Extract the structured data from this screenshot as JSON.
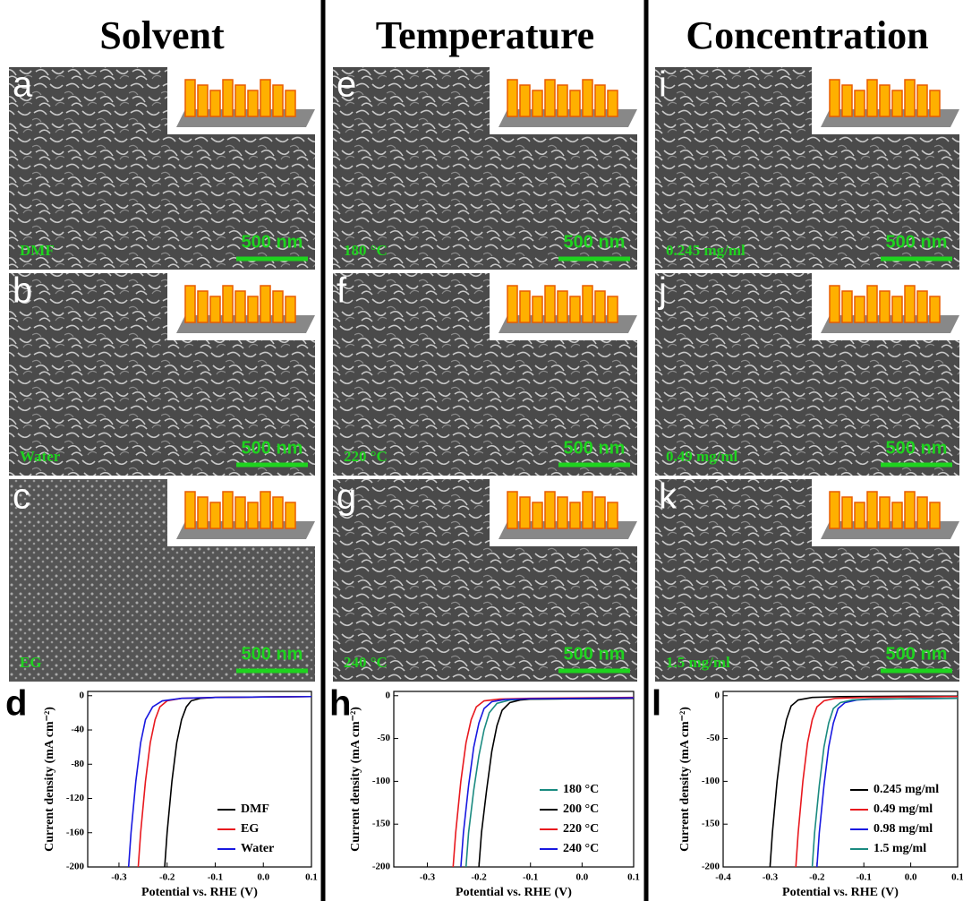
{
  "headers": [
    "Solvent",
    "Temperature",
    "Concentration"
  ],
  "panels": [
    {
      "letter": "a",
      "label": "DMF",
      "scale": "500 nm"
    },
    {
      "letter": "b",
      "label": "Water",
      "scale": "500 nm"
    },
    {
      "letter": "c",
      "label": "EG",
      "scale": "500 nm"
    },
    {
      "letter": "e",
      "label": "180 °C",
      "scale": "500 nm"
    },
    {
      "letter": "f",
      "label": "220 °C",
      "scale": "500 nm"
    },
    {
      "letter": "g",
      "label": "240 °C",
      "scale": "500 nm"
    },
    {
      "letter": "i",
      "label": "0.245 mg/ml",
      "scale": "500 nm"
    },
    {
      "letter": "j",
      "label": "0.49 mg/ml",
      "scale": "500 nm"
    },
    {
      "letter": "k",
      "label": "1.5 mg/ml",
      "scale": "500 nm"
    }
  ],
  "plot_letters": [
    "d",
    "h",
    "l"
  ],
  "chart_data": [
    {
      "type": "line",
      "x_label": "Potential vs. RHE (V)",
      "y_label": "Current density (mA cm⁻²)",
      "xlim": [
        -0.365,
        0.1
      ],
      "xticks": [
        -0.3,
        -0.2,
        -0.1,
        {
          "value": 0,
          "label": "0.0"
        },
        0.1
      ],
      "ylim": [
        -200,
        5
      ],
      "yticks": [
        0,
        -40,
        -80,
        -120,
        -160,
        -200
      ],
      "series": [
        {
          "name": "DMF",
          "color": "#000000",
          "x": [
            -0.205,
            -0.2,
            -0.19,
            -0.18,
            -0.17,
            -0.16,
            -0.15,
            -0.13,
            -0.1,
            0,
            0.1
          ],
          "values": [
            -200,
            -160,
            -100,
            -55,
            -28,
            -13,
            -6,
            -3,
            -2,
            -1.5,
            -1
          ]
        },
        {
          "name": "EG",
          "color": "#e8181e",
          "x": [
            -0.26,
            -0.255,
            -0.245,
            -0.235,
            -0.225,
            -0.215,
            -0.2,
            -0.17,
            -0.1,
            0,
            0.1
          ],
          "values": [
            -200,
            -160,
            -100,
            -55,
            -28,
            -13,
            -6,
            -3,
            -2,
            -1.5,
            -1
          ]
        },
        {
          "name": "Water",
          "color": "#1818e0",
          "x": [
            -0.28,
            -0.275,
            -0.265,
            -0.255,
            -0.245,
            -0.23,
            -0.21,
            -0.17,
            -0.1,
            0,
            0.1
          ],
          "values": [
            -200,
            -160,
            -100,
            -55,
            -28,
            -13,
            -6,
            -3,
            -2,
            -1.5,
            -1
          ]
        }
      ]
    },
    {
      "type": "line",
      "x_label": "Potential vs. RHE (V)",
      "y_label": "Current density (mA cm⁻²)",
      "xlim": [
        -0.365,
        0.1
      ],
      "xticks": [
        -0.3,
        -0.2,
        -0.1,
        {
          "value": 0,
          "label": "0.0"
        },
        0.1
      ],
      "ylim": [
        -200,
        5
      ],
      "yticks": [
        0,
        -50,
        -100,
        -150,
        -200
      ],
      "series": [
        {
          "name": "180 °C",
          "color": "#1a8a80",
          "x": [
            -0.225,
            -0.22,
            -0.21,
            -0.2,
            -0.19,
            -0.18,
            -0.165,
            -0.14,
            -0.1,
            0,
            0.1
          ],
          "values": [
            -200,
            -160,
            -110,
            -70,
            -40,
            -20,
            -9,
            -5,
            -4,
            -3.5,
            -3
          ]
        },
        {
          "name": "200 °C",
          "color": "#000000",
          "x": [
            -0.2,
            -0.195,
            -0.185,
            -0.175,
            -0.165,
            -0.155,
            -0.14,
            -0.12,
            -0.1,
            0,
            0.1
          ],
          "values": [
            -200,
            -160,
            -110,
            -65,
            -35,
            -17,
            -8,
            -5,
            -4,
            -3.5,
            -3
          ]
        },
        {
          "name": "220 °C",
          "color": "#e8181e",
          "x": [
            -0.25,
            -0.245,
            -0.235,
            -0.225,
            -0.215,
            -0.205,
            -0.19,
            -0.16,
            -0.1,
            0,
            0.1
          ],
          "values": [
            -200,
            -160,
            -100,
            -55,
            -28,
            -13,
            -6,
            -4,
            -3,
            -2.5,
            -2
          ]
        },
        {
          "name": "240 °C",
          "color": "#1818e0",
          "x": [
            -0.235,
            -0.23,
            -0.22,
            -0.21,
            -0.2,
            -0.19,
            -0.175,
            -0.15,
            -0.1,
            0,
            0.1
          ],
          "values": [
            -200,
            -160,
            -105,
            -60,
            -32,
            -15,
            -7,
            -4.5,
            -3.5,
            -3,
            -2.5
          ]
        }
      ]
    },
    {
      "type": "line",
      "x_label": "Potential vs. RHE (V)",
      "y_label": "Current density (mA cm⁻²)",
      "xlim": [
        -0.4,
        0.1
      ],
      "xticks": [
        -0.4,
        -0.3,
        -0.2,
        -0.1,
        {
          "value": 0,
          "label": "0.0"
        },
        0.1
      ],
      "ylim": [
        -200,
        5
      ],
      "yticks": [
        0,
        -50,
        -100,
        -150,
        -200
      ],
      "series": [
        {
          "name": "0.245 mg/ml",
          "color": "#000000",
          "x": [
            -0.3,
            -0.295,
            -0.285,
            -0.275,
            -0.265,
            -0.255,
            -0.24,
            -0.21,
            -0.15,
            0,
            0.1
          ],
          "values": [
            -200,
            -160,
            -100,
            -55,
            -28,
            -12,
            -5,
            -2,
            -1,
            -0.5,
            -0.5
          ]
        },
        {
          "name": "0.49 mg/ml",
          "color": "#e8181e",
          "x": [
            -0.245,
            -0.24,
            -0.23,
            -0.22,
            -0.21,
            -0.2,
            -0.185,
            -0.16,
            -0.1,
            0,
            0.1
          ],
          "values": [
            -200,
            -160,
            -100,
            -55,
            -28,
            -13,
            -6,
            -3,
            -2,
            -1.5,
            -1
          ]
        },
        {
          "name": "0.98 mg/ml",
          "color": "#1818e0",
          "x": [
            -0.2,
            -0.195,
            -0.185,
            -0.175,
            -0.165,
            -0.155,
            -0.14,
            -0.115,
            -0.08,
            0,
            0.1
          ],
          "values": [
            -200,
            -160,
            -105,
            -60,
            -32,
            -15,
            -8,
            -5,
            -4,
            -3.5,
            -3
          ]
        },
        {
          "name": "1.5 mg/ml",
          "color": "#1a8a80",
          "x": [
            -0.21,
            -0.205,
            -0.195,
            -0.185,
            -0.175,
            -0.165,
            -0.15,
            -0.125,
            -0.09,
            0,
            0.1
          ],
          "values": [
            -200,
            -160,
            -105,
            -60,
            -32,
            -15,
            -8,
            -5,
            -4,
            -3.5,
            -3
          ]
        }
      ]
    }
  ]
}
